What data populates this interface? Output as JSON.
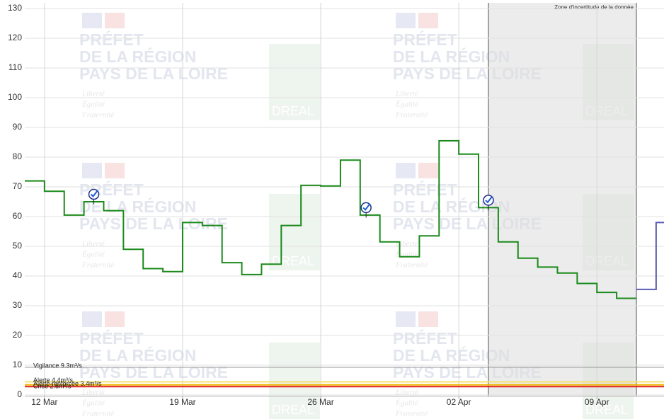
{
  "chart_data": {
    "type": "step",
    "x": [
      11,
      12,
      13,
      14,
      15,
      16,
      17,
      18,
      19,
      20,
      21,
      22,
      23,
      24,
      25,
      26,
      27,
      28,
      29,
      30,
      31,
      32,
      33,
      34,
      35,
      36,
      37,
      38,
      39,
      40,
      41
    ],
    "series": [
      {
        "color": "#1a8a1a",
        "x": [
          11,
          12,
          13,
          14,
          15,
          16,
          17,
          18,
          19,
          20,
          21,
          22,
          23,
          24,
          25,
          26,
          27,
          28,
          29,
          30,
          31,
          32,
          33,
          34,
          35,
          36,
          37,
          38,
          39,
          40,
          41
        ],
        "values": [
          72,
          68.5,
          60.5,
          65,
          62,
          49,
          42.5,
          41.5,
          58,
          57,
          44.5,
          40.5,
          44,
          57,
          70.5,
          70.3,
          79,
          60.5,
          51.5,
          46.5,
          53.5,
          85.5,
          81,
          63,
          51.5,
          46,
          43,
          41,
          37.5,
          34.5,
          32.5
        ]
      },
      {
        "color": "#5a5ab4",
        "x": [
          42,
          43
        ],
        "values": [
          35.5,
          58
        ]
      }
    ],
    "xlim": [
      11,
      43.4
    ],
    "xticks": [
      {
        "value": 12,
        "label": "12 Mar"
      },
      {
        "value": 19,
        "label": "19 Mar"
      },
      {
        "value": 26,
        "label": "26 Mar"
      },
      {
        "value": 33,
        "label": "02 Apr"
      },
      {
        "value": 40,
        "label": "09 Apr"
      }
    ],
    "ylim": [
      0,
      130
    ],
    "yticks": [
      0,
      10,
      20,
      30,
      40,
      50,
      60,
      70,
      80,
      90,
      100,
      110,
      120,
      130
    ],
    "grid": true,
    "thresholds": [
      {
        "label": "Vigilance 9.3m³/s",
        "value": 9.3,
        "color": "#999999"
      },
      {
        "label": "Alerte 4.4m³/s",
        "value": 4.4,
        "color": "#f3e27a"
      },
      {
        "label": "Alerte renforcée 3.4m³/s",
        "value": 3.4,
        "color": "#f0b400"
      },
      {
        "label": "Crise 2.8m³/s",
        "value": 2.8,
        "color": "#e02020"
      }
    ],
    "zone": {
      "label": "Zone d'incertitude de la donnée",
      "x": [
        34.5,
        42
      ]
    },
    "validations": [
      {
        "x": 14.5,
        "y": 67.5
      },
      {
        "x": 28.3,
        "y": 63
      },
      {
        "x": 34.5,
        "y": 65.5
      }
    ],
    "watermark": {
      "lines": [
        "PRÉFET",
        "DE LA RÉGION",
        "PAYS DE LA LOIRE"
      ],
      "motto": [
        "Liberté",
        "Égalité",
        "Fraternité"
      ],
      "badge": "DREAL"
    }
  }
}
